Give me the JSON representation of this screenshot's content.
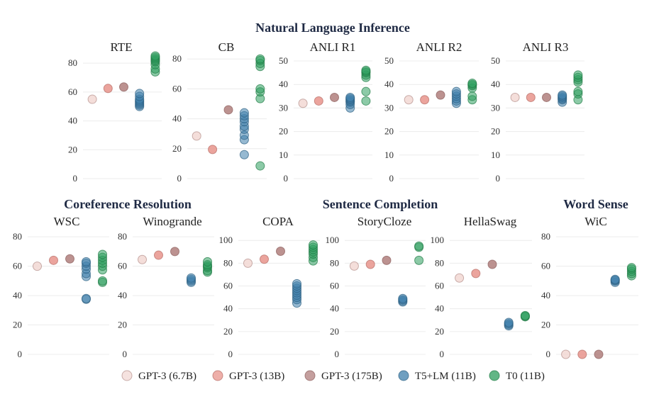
{
  "chart_data": {
    "type": "scatter",
    "legend_position": "bottom",
    "series": [
      {
        "name": "GPT-3 (6.7B)",
        "color": "#f2d8d4",
        "edge": "#b38f8a"
      },
      {
        "name": "GPT-3 (13B)",
        "color": "#e8948c",
        "edge": "#b56b64"
      },
      {
        "name": "GPT-3 (175B)",
        "color": "#b07f7d",
        "edge": "#8b5e5c"
      },
      {
        "name": "T5+LM (11B)",
        "color": "#3f7fab",
        "edge": "#2c5f82"
      },
      {
        "name": "T0 (11B)",
        "color": "#2e9e5e",
        "edge": "#1f7a45"
      }
    ],
    "groups": [
      {
        "title": "Natural Language Inference"
      },
      {
        "title": "Coreference Resolution"
      },
      {
        "title": "Sentence Completion"
      },
      {
        "title": "Word Sense"
      }
    ],
    "panels": [
      {
        "title": "RTE",
        "ylim": [
          0,
          85
        ],
        "yticks": [
          0,
          20,
          40,
          60,
          80
        ],
        "points": [
          [
            55
          ],
          [
            62.5
          ],
          [
            63.5
          ],
          [
            50,
            51,
            52,
            53,
            54,
            55,
            57,
            59
          ],
          [
            74,
            76,
            79,
            81,
            82,
            83,
            84,
            85
          ]
        ]
      },
      {
        "title": "CB",
        "ylim": [
          0,
          82
        ],
        "yticks": [
          0,
          20,
          40,
          60,
          80
        ],
        "points": [
          [
            28.5
          ],
          [
            19.5
          ],
          [
            46
          ],
          [
            16,
            26,
            29,
            33,
            35,
            38,
            40,
            42,
            44
          ],
          [
            8.5,
            53.5,
            58,
            60,
            75,
            77,
            79,
            80
          ]
        ]
      },
      {
        "title": "ANLI R1",
        "ylim": [
          0,
          50
        ],
        "yticks": [
          0,
          10,
          20,
          30,
          40,
          50
        ],
        "points": [
          [
            32
          ],
          [
            33
          ],
          [
            34.5
          ],
          [
            30,
            31.5,
            32.5,
            33,
            33.5,
            34,
            34.5
          ],
          [
            33,
            37,
            43,
            44,
            45,
            45.5,
            46
          ]
        ]
      },
      {
        "title": "ANLI R2",
        "ylim": [
          0,
          50
        ],
        "yticks": [
          0,
          10,
          20,
          30,
          40,
          50
        ],
        "points": [
          [
            33.5
          ],
          [
            33.5
          ],
          [
            35.5
          ],
          [
            32,
            33,
            34,
            35,
            36,
            37
          ],
          [
            33.5,
            35,
            38.5,
            39.5,
            40,
            40.5
          ]
        ]
      },
      {
        "title": "ANLI R3",
        "ylim": [
          0,
          50
        ],
        "yticks": [
          0,
          10,
          20,
          30,
          40,
          50
        ],
        "points": [
          [
            34.5
          ],
          [
            34.5
          ],
          [
            34.5
          ],
          [
            32.5,
            33.5,
            34,
            34.5,
            35,
            35.5
          ],
          [
            33.5,
            36,
            37,
            41,
            42,
            43,
            44
          ]
        ]
      },
      {
        "title": "WSC",
        "ylim": [
          0,
          82
        ],
        "yticks": [
          0,
          20,
          40,
          60,
          80
        ],
        "points": [
          [
            60
          ],
          [
            64
          ],
          [
            65
          ],
          [
            37.5,
            38,
            53,
            55,
            58,
            60,
            62,
            63
          ],
          [
            49,
            50,
            57.5,
            60,
            62,
            64,
            66,
            68
          ]
        ]
      },
      {
        "title": "Winogrande",
        "ylim": [
          0,
          82
        ],
        "yticks": [
          0,
          20,
          40,
          60,
          80
        ],
        "points": [
          [
            64.5
          ],
          [
            67.5
          ],
          [
            70
          ],
          [
            49,
            50,
            51,
            52
          ],
          [
            56,
            57,
            59,
            60,
            61,
            63
          ]
        ]
      },
      {
        "title": "COPA",
        "ylim": [
          0,
          102
        ],
        "yticks": [
          0,
          20,
          40,
          60,
          80,
          100
        ],
        "points": [
          [
            80
          ],
          [
            83.5
          ],
          [
            90.5
          ],
          [
            45,
            48,
            50,
            52,
            54,
            56,
            58,
            60,
            62
          ],
          [
            82,
            85,
            88,
            90,
            92,
            94,
            96
          ]
        ]
      },
      {
        "title": "StoryCloze",
        "ylim": [
          0,
          102
        ],
        "yticks": [
          0,
          20,
          40,
          60,
          80,
          100
        ],
        "points": [
          [
            77.5
          ],
          [
            79
          ],
          [
            82.5
          ],
          [
            46,
            47,
            48,
            49
          ],
          [
            82.5,
            94,
            95
          ]
        ]
      },
      {
        "title": "HellaSwag",
        "ylim": [
          0,
          102
        ],
        "yticks": [
          0,
          20,
          40,
          60,
          80,
          100
        ],
        "points": [
          [
            67
          ],
          [
            71
          ],
          [
            79
          ],
          [
            25,
            26,
            27,
            28
          ],
          [
            33,
            33.5,
            34
          ]
        ]
      },
      {
        "title": "WiC",
        "ylim": [
          0,
          82
        ],
        "yticks": [
          0,
          20,
          40,
          60,
          80
        ],
        "points": [
          [
            0
          ],
          [
            0
          ],
          [
            0
          ],
          [
            49,
            50,
            50.5,
            51
          ],
          [
            53.5,
            55,
            56.5,
            58,
            59
          ]
        ]
      }
    ]
  }
}
